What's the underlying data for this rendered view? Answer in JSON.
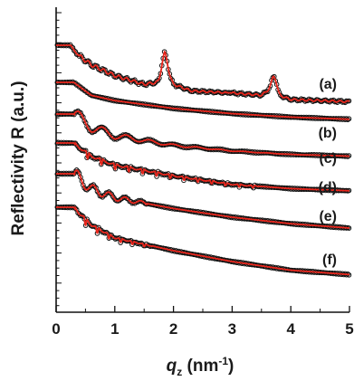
{
  "chart_data": {
    "type": "line",
    "title": "",
    "ylabel": "Reflectivity R (a.u.)",
    "xlabel_symbol": "q",
    "xlabel_subscript": "z",
    "xlabel_units_open": " (nm",
    "xlabel_units_exp": "-1",
    "xlabel_units_close": ")",
    "xlim": [
      0,
      5
    ],
    "x_ticks": [
      "0",
      "1",
      "2",
      "3",
      "4",
      "5"
    ],
    "y_tick_labels": "none",
    "y_scale": "log (offset, arbitrary units)",
    "grid": false,
    "legend": "none",
    "marker_style": "open circles (data)",
    "fit_color": "#e8241a",
    "data_color": "#111111",
    "series": [
      {
        "label": "(a)",
        "x": [
          0.0,
          0.25,
          0.35,
          0.6,
          1.0,
          1.5,
          1.75,
          1.85,
          2.0,
          2.3,
          3.0,
          3.5,
          3.7,
          3.8,
          4.0,
          5.0
        ],
        "y": [
          0.0,
          0.0,
          -0.2,
          -0.45,
          -0.7,
          -0.9,
          -0.85,
          -0.55,
          -0.9,
          -1.05,
          -1.1,
          -1.15,
          -0.95,
          -1.15,
          -1.25,
          -1.3
        ],
        "fringes": "fine oscillations 0.4-2.8, Bragg peaks at 1.85 and 3.72"
      },
      {
        "label": "(b)",
        "x": [
          0.0,
          0.3,
          0.6,
          1.0,
          2.0,
          3.0,
          4.0,
          5.0
        ],
        "y": [
          0.0,
          0.0,
          -0.3,
          -0.42,
          -0.6,
          -0.72,
          -0.8,
          -0.85
        ],
        "fringes": "none"
      },
      {
        "label": "(c)",
        "x": [
          0.0,
          0.3,
          0.6,
          1.0,
          2.0,
          3.0,
          4.0,
          5.0
        ],
        "y": [
          0.0,
          0.0,
          -0.3,
          -0.5,
          -0.72,
          -0.85,
          -0.93,
          -0.97
        ],
        "fringes": "damped, period about 0.4"
      },
      {
        "label": "(d)",
        "x": [
          0.0,
          0.3,
          0.6,
          1.0,
          2.0,
          3.0,
          4.0,
          5.0
        ],
        "y": [
          0.0,
          0.0,
          -0.3,
          -0.5,
          -0.75,
          -0.95,
          -1.05,
          -1.1
        ],
        "fringes": "deep, period about 0.235, up to 3.4"
      },
      {
        "label": "(e)",
        "x": [
          0.0,
          0.3,
          0.6,
          1.0,
          2.0,
          3.0,
          4.0,
          5.0
        ],
        "y": [
          0.0,
          0.0,
          -0.35,
          -0.55,
          -0.8,
          -1.0,
          -1.15,
          -1.25
        ],
        "fringes": "period about 0.27, up to 1.5"
      },
      {
        "label": "(f)",
        "x": [
          0.0,
          0.3,
          0.6,
          1.0,
          2.0,
          3.0,
          4.0,
          5.0
        ],
        "y": [
          0.0,
          0.0,
          -0.4,
          -0.7,
          -1.0,
          -1.25,
          -1.45,
          -1.55
        ],
        "fringes": "deep, period about 0.2, up to 1.6"
      }
    ]
  }
}
